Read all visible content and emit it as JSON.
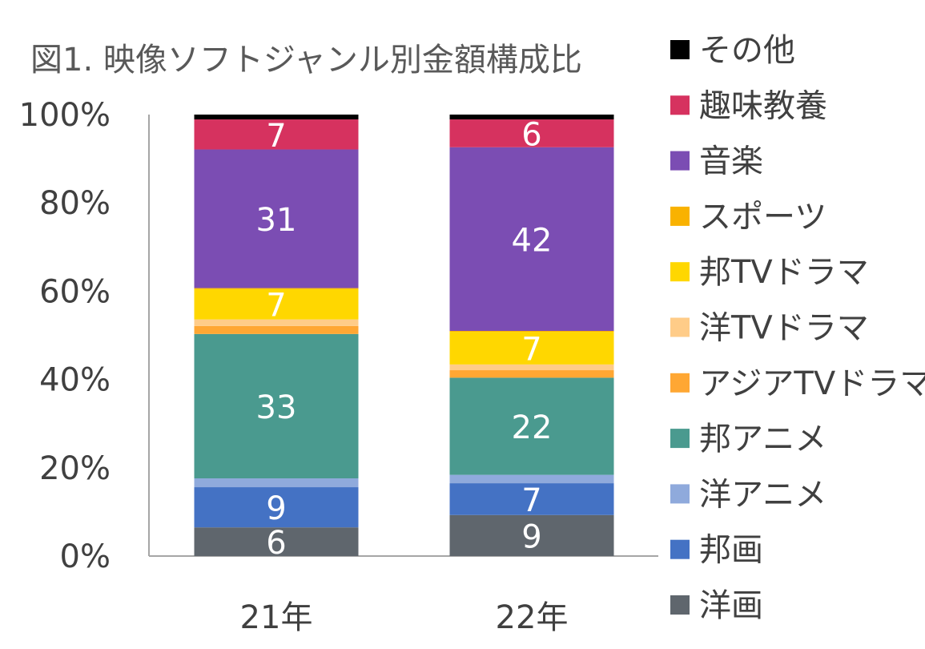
{
  "chart_data": {
    "type": "bar",
    "stacked": true,
    "normalized": true,
    "title": "図1.  映像ソフトジャンル別金額構成比",
    "xlabel": "",
    "ylabel": "",
    "ylim": [
      0,
      100
    ],
    "y_ticks": [
      "0%",
      "20%",
      "40%",
      "60%",
      "80%",
      "100%"
    ],
    "grid": false,
    "legend_position": "right",
    "categories": [
      "21年",
      "22年"
    ],
    "series": [
      {
        "name": "洋画",
        "color": "#5f666d",
        "values": [
          6.5,
          9.3
        ],
        "labels": [
          "6",
          "9"
        ]
      },
      {
        "name": "邦画",
        "color": "#4472c4",
        "values": [
          9.1,
          7.2
        ],
        "labels": [
          "9",
          "7"
        ]
      },
      {
        "name": "洋アニメ",
        "color": "#8faadc",
        "values": [
          2.0,
          1.9
        ],
        "labels": [
          "",
          ""
        ]
      },
      {
        "name": "邦アニメ",
        "color": "#4a9a8f",
        "values": [
          32.7,
          22.0
        ],
        "labels": [
          "33",
          "22"
        ]
      },
      {
        "name": "アジアTVドラマ",
        "color": "#ffa733",
        "values": [
          1.8,
          1.7
        ],
        "labels": [
          "",
          ""
        ]
      },
      {
        "name": "洋TVドラマ",
        "color": "#ffcc88",
        "values": [
          1.5,
          1.3
        ],
        "labels": [
          "",
          ""
        ]
      },
      {
        "name": "邦TVドラマ",
        "color": "#ffd700",
        "values": [
          6.9,
          7.4
        ],
        "labels": [
          "7",
          "7"
        ]
      },
      {
        "name": "スポーツ",
        "color": "#f9b200",
        "values": [
          0.2,
          0.2
        ],
        "labels": [
          "",
          ""
        ]
      },
      {
        "name": "音楽",
        "color": "#7b4db3",
        "values": [
          31.4,
          41.6
        ],
        "labels": [
          "31",
          "42"
        ]
      },
      {
        "name": "趣味教養",
        "color": "#d6325f",
        "values": [
          6.8,
          6.3
        ],
        "labels": [
          "7",
          "6"
        ]
      },
      {
        "name": "その他",
        "color": "#000000",
        "values": [
          1.1,
          1.1
        ],
        "labels": [
          "",
          ""
        ]
      }
    ]
  }
}
